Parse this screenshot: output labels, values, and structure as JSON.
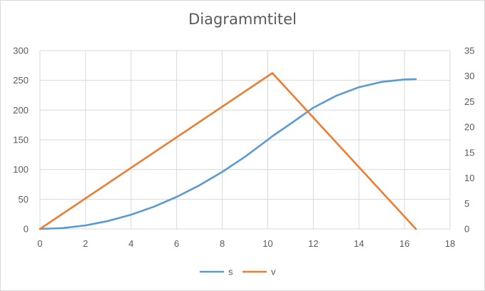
{
  "chart_data": {
    "type": "line",
    "title": "Diagrammtitel",
    "xlim": [
      0,
      18
    ],
    "xticks": [
      0,
      2,
      4,
      6,
      8,
      10,
      12,
      14,
      16,
      18
    ],
    "y_left_lim": [
      0,
      300
    ],
    "y_left_ticks": [
      0,
      50,
      100,
      150,
      200,
      250,
      300
    ],
    "y_right_lim": [
      0,
      35
    ],
    "y_right_ticks": [
      0,
      5,
      10,
      15,
      20,
      25,
      30,
      35
    ],
    "grid": true,
    "legend_position": "bottom",
    "series": [
      {
        "name": "s",
        "axis": "left",
        "color": "#5b9bd5",
        "x": [
          0,
          1,
          2,
          3,
          4,
          5,
          6,
          7,
          8,
          9,
          10,
          10.2,
          11,
          12,
          13,
          14,
          15,
          16,
          16.5
        ],
        "y": [
          0,
          1.5,
          6,
          13.5,
          24,
          37.5,
          54,
          73.5,
          96,
          121.5,
          150,
          156,
          177,
          204,
          224,
          238.5,
          247.5,
          251.5,
          252
        ]
      },
      {
        "name": "v",
        "axis": "right",
        "color": "#ed7d31",
        "x": [
          0,
          10.2,
          16.5
        ],
        "y": [
          0,
          30.6,
          0
        ]
      }
    ]
  }
}
